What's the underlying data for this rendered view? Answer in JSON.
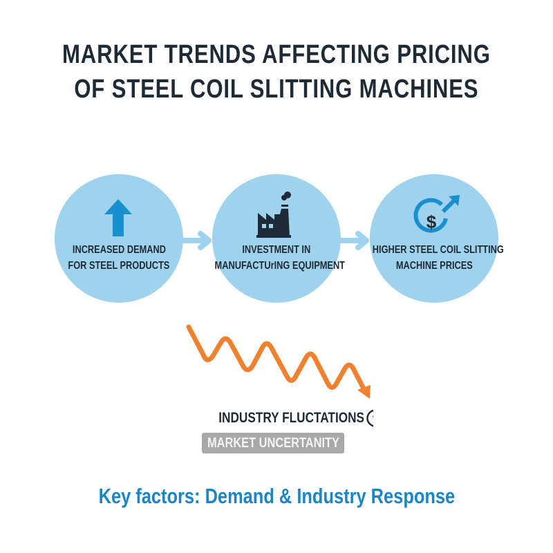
{
  "title": {
    "line1": "MARKET TRENDS AFFECTING PRICING",
    "line2": "OF STEEL COIL SLITTING MACHINES"
  },
  "flow": [
    {
      "label_line1": "INCREASED DEMAND",
      "label_line2": "FOR STEEL PRODUCTS",
      "icon": "up-arrow-icon"
    },
    {
      "label_line1": "INVESTMENT IN",
      "label_line2": "MANUFACTUrING EQUIPMENT",
      "icon": "factory-icon"
    },
    {
      "label_line1": "HIGHER STEEL COIL SLITTING",
      "label_line2": "MACHINE PRICES",
      "icon": "dollar-growth-icon"
    }
  ],
  "fluctuations": {
    "label": "INDUSTRY FLUCTATIONS",
    "badge": "MARKET UNCERTANITY",
    "icon": "question-circle-icon"
  },
  "footer": "Key factors: Demand & Industry Response",
  "colors": {
    "circle": "#9fd2ec",
    "accent_blue": "#1a8fd0",
    "dark": "#1e2a36",
    "wave_orange": "#f0812e",
    "badge_gray": "#a8a8a8",
    "footer_blue": "#1a86c8"
  }
}
